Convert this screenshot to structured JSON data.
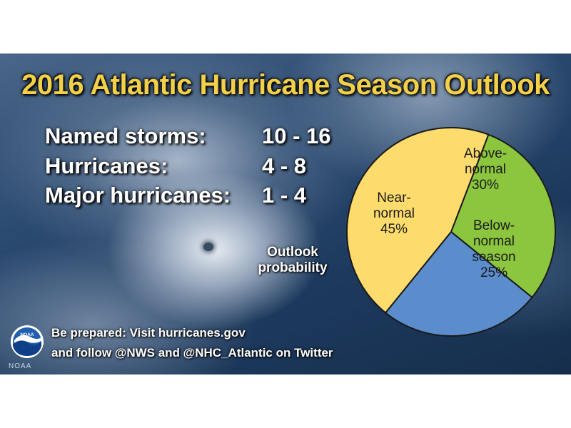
{
  "title": "2016 Atlantic Hurricane Season Outlook",
  "stats": [
    {
      "label": "Named storms:",
      "value": "10 - 16"
    },
    {
      "label": "Hurricanes:",
      "value": "4 - 8"
    },
    {
      "label": "Major hurricanes:",
      "value": "1 - 4"
    }
  ],
  "caption": {
    "line1": "Outlook",
    "line2": "probability"
  },
  "footer": {
    "line1": "Be prepared: Visit hurricanes.gov",
    "line2": "and follow @NWS and @NHC_Atlantic on Twitter"
  },
  "logo": {
    "text": "NOAA",
    "word": "NOAA",
    "icon": "noaa-logo-icon"
  },
  "chart_data": {
    "type": "pie",
    "slices": [
      {
        "label": "Above-normal",
        "value": 30,
        "color": "#8cc63f",
        "text_lines": [
          "Above-",
          "normal",
          "30%"
        ]
      },
      {
        "label": "Below-normal season",
        "value": 25,
        "color": "#5b8ccc",
        "text_lines": [
          "Below-",
          "normal",
          "season",
          "25%"
        ]
      },
      {
        "label": "Near-normal",
        "value": 45,
        "color": "#fddb6d",
        "text_lines": [
          "Near-",
          "normal",
          "45%"
        ]
      }
    ]
  }
}
